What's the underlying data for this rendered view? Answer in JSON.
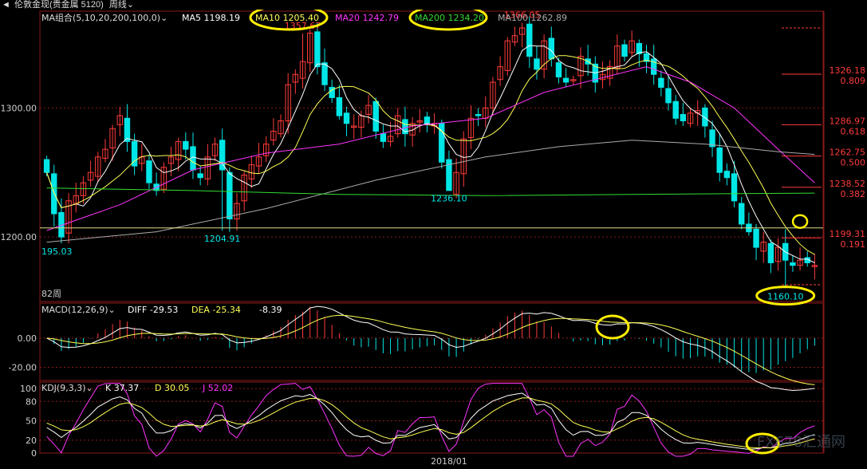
{
  "header": {
    "title": "伦敦金现(贵金属 5120)",
    "period": "周线"
  },
  "main_legend": {
    "name": "MA组合(5,10,20,200,100,0)",
    "ma5": "MA5 1198.19",
    "ma10": "MA10 1205.40",
    "ma20": "MA20 1242.79",
    "ma200": "MA200 1234.20",
    "ma100": "MA100 1262.89"
  },
  "macd_legend": {
    "name": "MACD(12,26,9)",
    "diff": "DIFF -29.53",
    "dea": "DEA -25.34",
    "macd": "-8.39"
  },
  "kdj_legend": {
    "name": "KDJ(9,3,3)",
    "k": "K 37.37",
    "d": "D 30.05",
    "j": "J 52.02"
  },
  "annotations": {
    "high1": "1357.67",
    "high2": "1366.05",
    "low_left": "195.03",
    "low2": "1204.91",
    "low3": "1236.10",
    "low_recent": "1160.10",
    "weeks": "82周",
    "date_label": "2018/01"
  },
  "fib_levels": [
    {
      "price": "1326.18",
      "ratio": "0.809"
    },
    {
      "price": "1286.97",
      "ratio": "0.618"
    },
    {
      "price": "1262.75",
      "ratio": "0.500"
    },
    {
      "price": "1238.52",
      "ratio": "0.382"
    },
    {
      "price": "1199.31",
      "ratio": "0.191"
    }
  ],
  "colors": {
    "up": "#ff3b3b",
    "down": "#00e6e6",
    "ma5": "#ffffff",
    "ma10": "#ffff55",
    "ma20": "#ff33ff",
    "ma200": "#33dd33",
    "ma100": "#aaaaaa",
    "grid": "#8a1a1a",
    "highlight": "#ffee00"
  },
  "chart_data": {
    "type": "candlestick",
    "ylim": [
      1150,
      1375
    ],
    "yticks": [
      {
        "v": 1300,
        "label": "1300.00"
      },
      {
        "v": 1200,
        "label": "1200.00"
      }
    ],
    "macd_ylim": [
      -29,
      24
    ],
    "macd_yticks": [
      {
        "v": 0,
        "label": "0.00"
      },
      {
        "v": -20,
        "label": "-20.00"
      }
    ],
    "kdj_ylim": [
      0,
      110
    ],
    "kdj_yticks": [
      {
        "v": 100,
        "label": "100"
      },
      {
        "v": 80,
        "label": "80"
      },
      {
        "v": 50,
        "label": "50"
      },
      {
        "v": 20,
        "label": "20"
      },
      {
        "v": 0,
        "label": "0"
      }
    ],
    "close": [
      1250,
      1218,
      1200,
      1228,
      1232,
      1242,
      1250,
      1262,
      1268,
      1284,
      1294,
      1274,
      1255,
      1262,
      1242,
      1236,
      1254,
      1262,
      1274,
      1268,
      1252,
      1246,
      1262,
      1272,
      1252,
      1214,
      1226,
      1248,
      1256,
      1262,
      1272,
      1282,
      1290,
      1318,
      1326,
      1336,
      1358,
      1332,
      1318,
      1308,
      1294,
      1288,
      1286,
      1294,
      1302,
      1282,
      1274,
      1278,
      1294,
      1280,
      1288,
      1290,
      1288,
      1288,
      1258,
      1236,
      1250,
      1276,
      1292,
      1294,
      1300,
      1320,
      1332,
      1352,
      1356,
      1362,
      1340,
      1330,
      1352,
      1338,
      1324,
      1320,
      1322,
      1340,
      1334,
      1320,
      1326,
      1332,
      1348,
      1340,
      1352,
      1342,
      1336,
      1326,
      1316,
      1304,
      1292,
      1290,
      1296,
      1298,
      1286,
      1270,
      1250,
      1246,
      1228,
      1210,
      1204,
      1192,
      1196,
      1180,
      1192,
      1182,
      1178,
      1182,
      1180,
      1178
    ],
    "ma200_points": [
      [
        0,
        1238
      ],
      [
        20,
        1236
      ],
      [
        40,
        1233
      ],
      [
        60,
        1232
      ],
      [
        80,
        1233
      ],
      [
        105,
        1234
      ]
    ],
    "ma100_points": [
      [
        0,
        1196
      ],
      [
        15,
        1204
      ],
      [
        30,
        1222
      ],
      [
        45,
        1244
      ],
      [
        60,
        1262
      ],
      [
        70,
        1270
      ],
      [
        80,
        1275
      ],
      [
        90,
        1272
      ],
      [
        100,
        1266
      ],
      [
        105,
        1264
      ]
    ],
    "ma20_points": [
      [
        0,
        1205
      ],
      [
        10,
        1225
      ],
      [
        20,
        1252
      ],
      [
        30,
        1265
      ],
      [
        40,
        1272
      ],
      [
        50,
        1286
      ],
      [
        60,
        1292
      ],
      [
        68,
        1312
      ],
      [
        75,
        1322
      ],
      [
        82,
        1332
      ],
      [
        88,
        1320
      ],
      [
        94,
        1300
      ],
      [
        100,
        1268
      ],
      [
        105,
        1242
      ]
    ]
  },
  "watermark": "FX678汇通网"
}
